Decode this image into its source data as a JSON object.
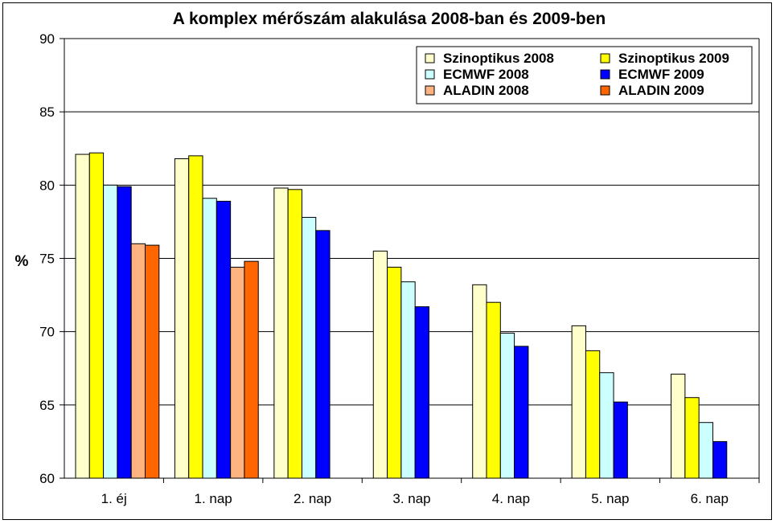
{
  "chart_data": {
    "type": "bar",
    "title": "A komplex mérőszám alakulása 2008-ban és 2009-ben",
    "xlabel": "",
    "ylabel": "%",
    "ylim": [
      60,
      90
    ],
    "yticks": [
      60,
      65,
      70,
      75,
      80,
      85,
      90
    ],
    "grid": true,
    "legend_position": "top-right",
    "categories": [
      "1. éj",
      "1. nap",
      "2. nap",
      "3. nap",
      "4. nap",
      "5. nap",
      "6. nap"
    ],
    "series": [
      {
        "name": "Szinoptikus 2008",
        "color": "#FFFFCC",
        "values": [
          82.1,
          81.8,
          79.8,
          75.5,
          73.2,
          70.4,
          67.1
        ]
      },
      {
        "name": "Szinoptikus 2009",
        "color": "#FFFF00",
        "values": [
          82.2,
          82.0,
          79.7,
          74.4,
          72.0,
          68.7,
          65.5
        ]
      },
      {
        "name": "ECMWF 2008",
        "color": "#CCFFFF",
        "values": [
          80.0,
          79.1,
          77.8,
          73.4,
          69.9,
          67.2,
          63.8
        ]
      },
      {
        "name": "ECMWF 2009",
        "color": "#0000FF",
        "values": [
          79.9,
          78.9,
          76.9,
          71.7,
          69.0,
          65.2,
          62.5
        ]
      },
      {
        "name": "ALADIN 2008",
        "color": "#FFB380",
        "values": [
          76.0,
          74.4,
          null,
          null,
          null,
          null,
          null
        ]
      },
      {
        "name": "ALADIN 2009",
        "color": "#FF6600",
        "values": [
          75.9,
          74.8,
          null,
          null,
          null,
          null,
          null
        ]
      }
    ]
  }
}
